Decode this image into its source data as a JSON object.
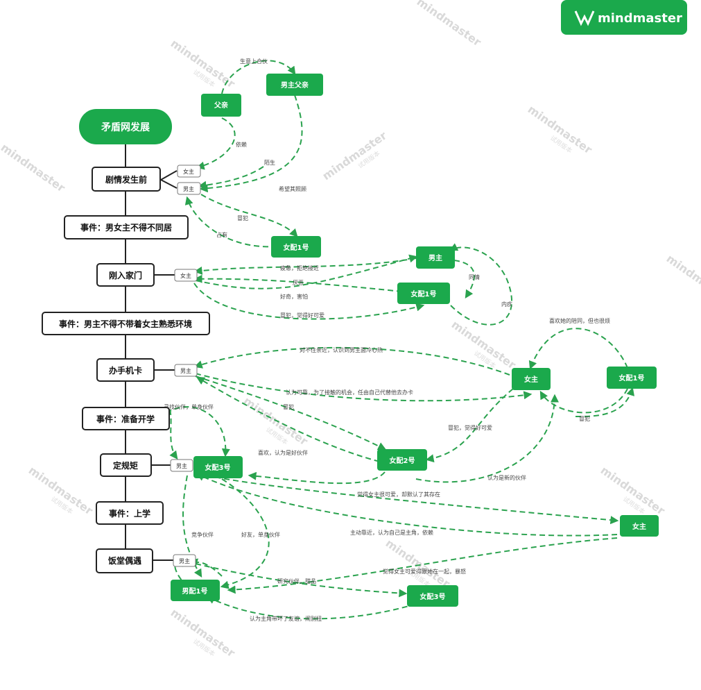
{
  "brand": "mindmaster",
  "watermark": {
    "text": "mindmaster",
    "sub": "试用版本"
  },
  "root": "矛盾网发展",
  "spine_nodes": {
    "n1": "剧情发生前",
    "n2": "事件：男女主不得不同居",
    "n3": "刚入家门",
    "n4": "事件：男主不得不带着女主熟悉环境",
    "n5": "办手机卡",
    "n6": "事件：准备开学",
    "n7": "定规矩",
    "n8": "事件：上学",
    "n9": "饭堂偶遇"
  },
  "small_nodes": {
    "s1": "女主",
    "s2": "男主",
    "s3": "女主",
    "s4": "男主",
    "s5": "男主",
    "s6": "男主"
  },
  "green_nodes": {
    "g_father": "父亲",
    "g_mfather": "男主父亲",
    "g_nvpei1a": "女配1号",
    "g_nanzhu": "男主",
    "g_nvpei1b": "女配1号",
    "g_nvzhu1": "女主",
    "g_nvpei1c": "女配1号",
    "g_nvpei2": "女配2号",
    "g_nvpei3a": "女配3号",
    "g_nvzhu2": "女主",
    "g_nanpei1": "男配1号",
    "g_nvpei3b": "女配3号"
  },
  "edge_labels": {
    "e1": "生意上合伙",
    "e2": "依赖",
    "e3": "陌生",
    "e4": "希望其照顾",
    "e5": "冒犯",
    "e6": "占有",
    "e7": "疲惫，拒绝接近",
    "e8": "厌恶",
    "e9": "同情",
    "e10": "好奇，害怕",
    "e11": "冒犯，觉得好可爱",
    "e12": "内疚",
    "e13": "喜欢她的陪同，但也很烦",
    "e14": "对不住亲近，认识到男主面冷心热",
    "e15": "认为可靠，为了接触的机会，任由自己代替他去办卡",
    "e16": "冒犯",
    "e17": "冒犯，觉得好可爱",
    "e18": "冒犯",
    "e19": "寻找伙伴，单身伙伴",
    "e20": "喜欢，认为是好伙伴",
    "e21": "认为是新的伙伴",
    "e22": "觉得女主很可爱，却默认了其存在",
    "e23": "竞争伙伴",
    "e24": "好友，单身伙伴",
    "e25": "主动靠近，认为自己是主角，依赖",
    "e26": "觉得女主可爱得跟她在一起，暴怒",
    "e27": "研究伙伴，甜品",
    "e28": "认为主角带坏了友谊，闹别扭"
  }
}
